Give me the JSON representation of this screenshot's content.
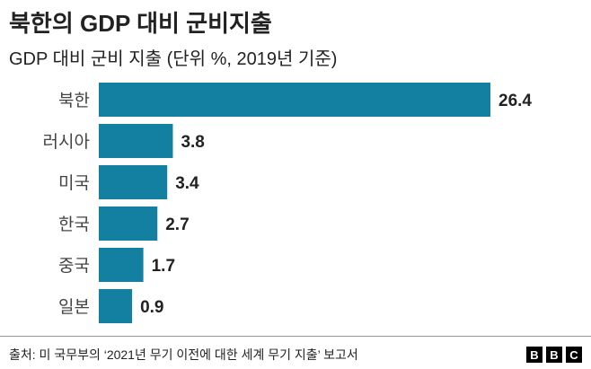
{
  "chart_data": {
    "type": "bar",
    "orientation": "horizontal",
    "title": "북한의 GDP 대비 군비지출",
    "subtitle": "GDP 대비 군비 지출 (단위 %, 2019년 기준)",
    "categories": [
      "북한",
      "러시아",
      "미국",
      "한국",
      "중국",
      "일본"
    ],
    "values": [
      26.4,
      3.8,
      3.4,
      2.7,
      1.7,
      0.9
    ],
    "data_labels": [
      "26.4",
      "3.8",
      "3.4",
      "2.7",
      "1.7",
      "0.9"
    ],
    "bar_color": "#1380a1",
    "grid": false,
    "legend": "none"
  },
  "footer": {
    "source": "출처: 미 국무부의 ‘2021년 무기 이전에 대한 세계 무기 지출’ 보고서",
    "logo": [
      "B",
      "B",
      "C"
    ]
  }
}
